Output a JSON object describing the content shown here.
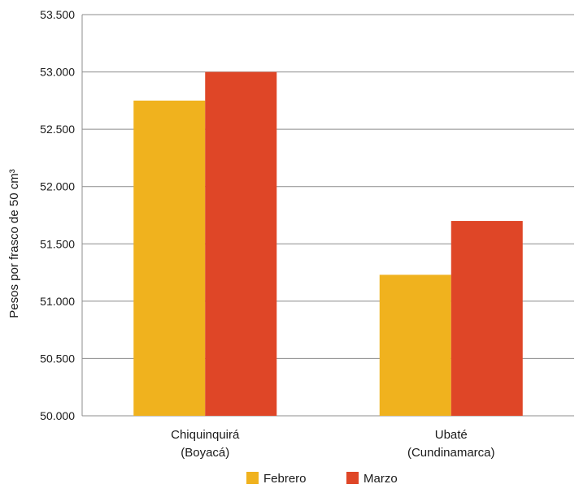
{
  "chart_data": {
    "type": "bar",
    "title": "",
    "xlabel": "",
    "ylabel": "Pesos por frasco de 50 cm³",
    "ylim": [
      50000,
      53500
    ],
    "yticks": [
      {
        "value": 50000,
        "label": "50.000"
      },
      {
        "value": 50500,
        "label": "50.500"
      },
      {
        "value": 51000,
        "label": "51.000"
      },
      {
        "value": 51500,
        "label": "51.500"
      },
      {
        "value": 52000,
        "label": "52.000"
      },
      {
        "value": 52500,
        "label": "52.500"
      },
      {
        "value": 53000,
        "label": "53.000"
      },
      {
        "value": 53500,
        "label": "53.500"
      }
    ],
    "categories": [
      {
        "line1": "Chiquinquirá",
        "line2": "(Boyacá)"
      },
      {
        "line1": "Ubaté",
        "line2": "(Cundinamarca)"
      }
    ],
    "series": [
      {
        "name": "Febrero",
        "color": "#F0B21E",
        "values": [
          52750,
          51230
        ]
      },
      {
        "name": "Marzo",
        "color": "#DF4627",
        "values": [
          53000,
          51700
        ]
      }
    ],
    "grid": true,
    "legend_position": "bottom-center"
  }
}
